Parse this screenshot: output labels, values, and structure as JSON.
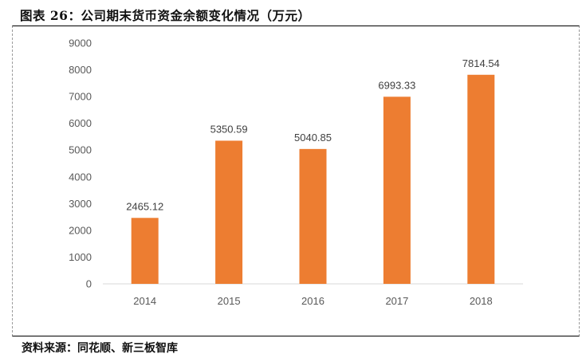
{
  "title": "图表 26：公司期末货币资金余额变化情况（万元）",
  "source": "资料来源：同花顺、新三板智库",
  "chart_data": {
    "type": "bar",
    "title": "",
    "xlabel": "",
    "ylabel": "",
    "categories": [
      "2014",
      "2015",
      "2016",
      "2017",
      "2018"
    ],
    "values": [
      2465.12,
      5350.59,
      5040.85,
      6993.33,
      7814.54
    ],
    "data_labels": [
      "2465.12",
      "5350.59",
      "5040.85",
      "6993.33",
      "7814.54"
    ],
    "ylim": [
      0,
      9000
    ],
    "yticks": [
      "0",
      "1000",
      "2000",
      "3000",
      "4000",
      "5000",
      "6000",
      "7000",
      "8000",
      "9000"
    ],
    "grid": false,
    "legend": "none",
    "bar_color": "#ED7D31",
    "axis_color": "#D9D9D9"
  }
}
